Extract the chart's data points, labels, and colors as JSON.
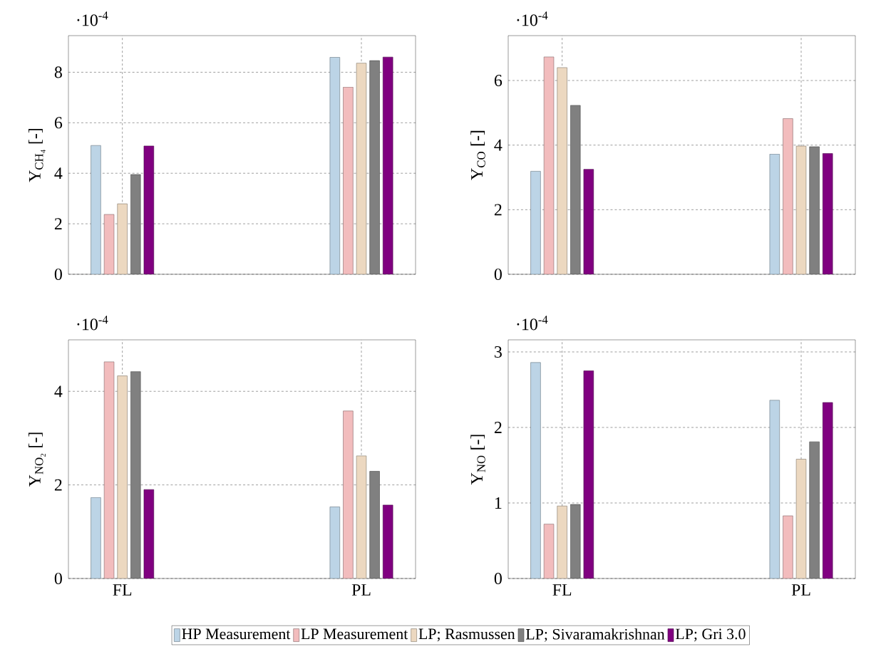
{
  "chart_data": [
    {
      "type": "bar",
      "ylabel": "Y$_{CH₄}$ [-]",
      "annotations": [
        "·10$^{-4}$"
      ],
      "categories": [
        null,
        null
      ],
      "ylim": [
        0,
        9.45
      ],
      "yticks": [
        0,
        2,
        4,
        6,
        8
      ],
      "grid": true,
      "tick_labels": "y",
      "legend": false,
      "series": [
        {
          "color": "#bcd4e6",
          "values": [
            5.1,
            8.59
          ]
        },
        {
          "color": "#f2bcbd",
          "values": [
            2.37,
            7.41
          ]
        },
        {
          "color": "#ecd8c0",
          "values": [
            2.79,
            8.36
          ]
        },
        {
          "color": "#808080",
          "values": [
            3.95,
            8.46
          ]
        },
        {
          "color": "#800080",
          "values": [
            5.08,
            8.6
          ]
        }
      ]
    },
    {
      "type": "bar",
      "ylabel": "Y$_{CO}$ [-]",
      "annotations": [
        "·10$^{-4}$"
      ],
      "categories": [
        null,
        null
      ],
      "ylim": [
        0,
        7.39
      ],
      "yticks": [
        0,
        2,
        4,
        6
      ],
      "grid": true,
      "tick_labels": "y",
      "legend": false,
      "series": [
        {
          "color": "#bcd4e6",
          "values": [
            3.19,
            3.72
          ]
        },
        {
          "color": "#f2bcbd",
          "values": [
            6.73,
            4.82
          ]
        },
        {
          "color": "#ecd8c0",
          "values": [
            6.4,
            3.97
          ]
        },
        {
          "color": "#808080",
          "values": [
            5.23,
            3.95
          ]
        },
        {
          "color": "#800080",
          "values": [
            3.25,
            3.74
          ]
        }
      ]
    },
    {
      "type": "bar",
      "ylabel": "Y$_{NO₂}$ [-]",
      "annotations": [
        "·10$^{-4}$"
      ],
      "categories": [
        "FL",
        "PL"
      ],
      "ylim": [
        0,
        5.1
      ],
      "yticks": [
        0,
        2,
        4
      ],
      "grid": true,
      "legend": false,
      "series": [
        {
          "color": "#bcd4e6",
          "values": [
            1.73,
            1.53
          ]
        },
        {
          "color": "#f2bcbd",
          "values": [
            4.63,
            3.58
          ]
        },
        {
          "color": "#ecd8c0",
          "values": [
            4.33,
            2.62
          ]
        },
        {
          "color": "#808080",
          "values": [
            4.42,
            2.29
          ]
        },
        {
          "color": "#800080",
          "values": [
            1.9,
            1.57
          ]
        }
      ]
    },
    {
      "type": "bar",
      "ylabel": "Y$_{NO}$ [-]",
      "annotations": [
        "·10$^{-4}$"
      ],
      "categories": [
        "FL",
        "PL"
      ],
      "ylim": [
        0,
        3.16
      ],
      "yticks": [
        0,
        1,
        2,
        3
      ],
      "grid": true,
      "legend": "bottom",
      "series": [
        {
          "name": "HP Measurement",
          "color": "#bcd4e6",
          "values": [
            2.86,
            2.36
          ]
        },
        {
          "name": "LP Measurement",
          "color": "#f2bcbd",
          "values": [
            0.72,
            0.83
          ]
        },
        {
          "name": "LP; Rasmussen",
          "color": "#ecd8c0",
          "values": [
            0.96,
            1.58
          ]
        },
        {
          "name": "LP; Sivaramakrishnan",
          "color": "#808080",
          "values": [
            0.98,
            1.81
          ]
        },
        {
          "name": "LP; Gri 3.0",
          "color": "#800080",
          "values": [
            2.75,
            2.33
          ]
        }
      ]
    }
  ]
}
